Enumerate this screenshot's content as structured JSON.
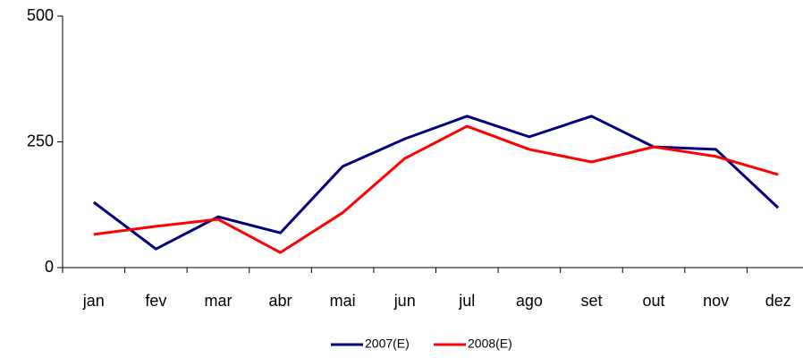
{
  "chart_data": {
    "type": "line",
    "categories": [
      "jan",
      "fev",
      "mar",
      "abr",
      "mai",
      "jun",
      "jul",
      "ago",
      "set",
      "out",
      "nov",
      "dez"
    ],
    "series": [
      {
        "name": "2007(E)",
        "color": "#000080",
        "values": [
          130,
          37,
          101,
          69,
          201,
          256,
          301,
          260,
          301,
          240,
          235,
          119
        ]
      },
      {
        "name": "2008(E)",
        "color": "#ff0000",
        "values": [
          66,
          82,
          96,
          30,
          109,
          217,
          281,
          235,
          210,
          240,
          221,
          185
        ]
      }
    ],
    "ylim": [
      0,
      500
    ],
    "yticks": [
      0,
      250,
      500
    ],
    "legend": "bottom"
  }
}
